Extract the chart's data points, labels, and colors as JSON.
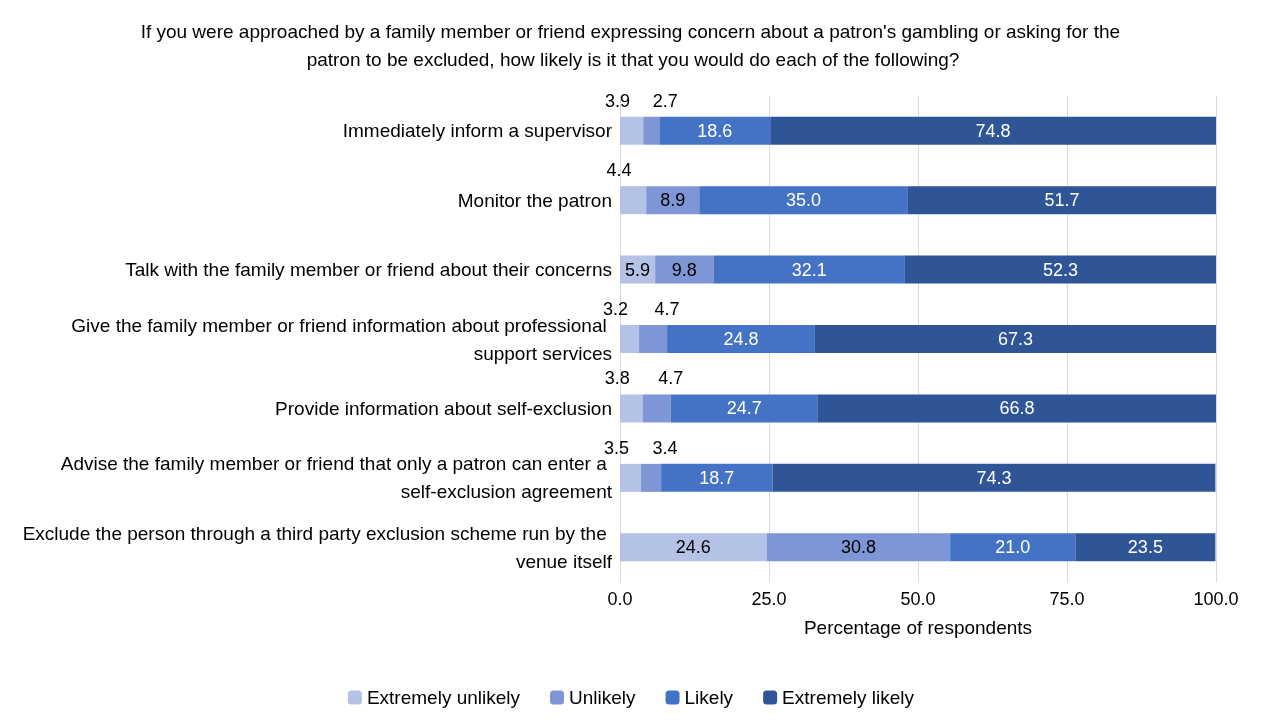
{
  "chart_data": {
    "type": "bar",
    "orientation": "horizontal",
    "stacked": true,
    "title": "If you were approached by a family member or friend expressing concern about a patron's gambling or asking for the patron to be excluded, how likely is it that you would do each of the following?",
    "xlabel": "Percentage of respondents",
    "categories": [
      "Immediately inform a supervisor",
      "Monitor the patron",
      "Talk with the family member or friend about their concerns",
      "Give the family member or friend information about professional support services",
      "Provide information about self-exclusion",
      "Advise the family member or friend that only a patron can enter a self-exclusion agreement",
      "Exclude the person through a third party exclusion scheme run by the venue itself"
    ],
    "series": [
      {
        "name": "Extremely unlikely",
        "color": "#b4c2e6",
        "values": [
          3.9,
          4.4,
          5.9,
          3.2,
          3.8,
          3.5,
          24.6
        ],
        "value_labels": [
          "3.9",
          "4.4",
          "5.9",
          "3.2",
          "3.8",
          "3.5",
          "24.6"
        ]
      },
      {
        "name": "Unlikely",
        "color": "#7f96d6",
        "values": [
          2.7,
          8.9,
          9.8,
          4.7,
          4.7,
          3.4,
          30.8
        ],
        "value_labels": [
          "2.7",
          "8.9",
          "9.8",
          "4.7",
          "4.7",
          "3.4",
          "30.8"
        ]
      },
      {
        "name": "Likely",
        "color": "#4472c4",
        "values": [
          18.6,
          35.0,
          32.1,
          24.8,
          24.7,
          18.7,
          21.0
        ],
        "value_labels": [
          "18.6",
          "35.0",
          "32.1",
          "24.8",
          "24.7",
          "18.7",
          "21.0"
        ]
      },
      {
        "name": "Extremely likely",
        "color": "#2f5597",
        "values": [
          74.8,
          51.7,
          52.3,
          67.3,
          66.8,
          74.3,
          23.5
        ],
        "value_labels": [
          "74.8",
          "51.7",
          "52.3",
          "67.3",
          "66.8",
          "74.3",
          "23.5"
        ]
      }
    ],
    "xlim": [
      0,
      100
    ],
    "xticks": [
      {
        "value": 0,
        "label": "0.0"
      },
      {
        "value": 25,
        "label": "25.0"
      },
      {
        "value": 50,
        "label": "50.0"
      },
      {
        "value": 75,
        "label": "75.0"
      },
      {
        "value": 100,
        "label": "100.0"
      }
    ],
    "grid": "x",
    "legend": "bottom"
  }
}
